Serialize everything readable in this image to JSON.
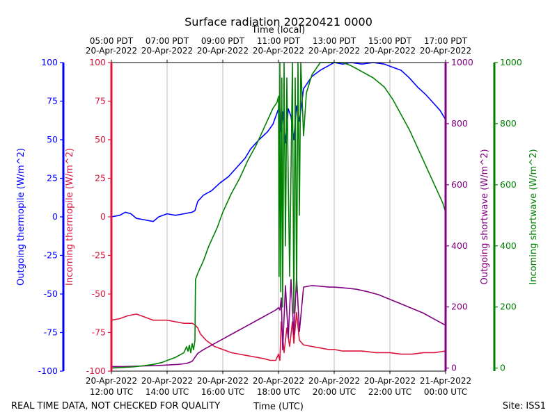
{
  "chart_data": {
    "type": "line",
    "title": "Surface radiation 20220421 0000",
    "top_axis_label": "Time (local)",
    "xlabel": "Time (UTC)",
    "footer_left": "REAL TIME DATA, NOT CHECKED FOR QUALITY",
    "footer_right": "Site: ISS1",
    "x_unit": "hours UTC on 20-Apr-2022",
    "xlim": [
      12,
      24
    ],
    "grid": "vertical",
    "x_ticks_utc": [
      {
        "x": 12,
        "line1": "20-Apr-2022",
        "line2": "12:00 UTC"
      },
      {
        "x": 14,
        "line1": "20-Apr-2022",
        "line2": "14:00 UTC"
      },
      {
        "x": 16,
        "line1": "20-Apr-2022",
        "line2": "16:00 UTC"
      },
      {
        "x": 18,
        "line1": "20-Apr-2022",
        "line2": "18:00 UTC"
      },
      {
        "x": 20,
        "line1": "20-Apr-2022",
        "line2": "20:00 UTC"
      },
      {
        "x": 22,
        "line1": "20-Apr-2022",
        "line2": "22:00 UTC"
      },
      {
        "x": 24,
        "line1": "21-Apr-2022",
        "line2": "00:00 UTC"
      }
    ],
    "x_ticks_local": [
      {
        "x": 12,
        "line1": "05:00 PDT",
        "line2": "20-Apr-2022"
      },
      {
        "x": 14,
        "line1": "07:00 PDT",
        "line2": "20-Apr-2022"
      },
      {
        "x": 16,
        "line1": "09:00 PDT",
        "line2": "20-Apr-2022"
      },
      {
        "x": 18,
        "line1": "11:00 PDT",
        "line2": "20-Apr-2022"
      },
      {
        "x": 20,
        "line1": "13:00 PDT",
        "line2": "20-Apr-2022"
      },
      {
        "x": 22,
        "line1": "15:00 PDT",
        "line2": "20-Apr-2022"
      },
      {
        "x": 24,
        "line1": "17:00 PDT",
        "line2": "20-Apr-2022"
      }
    ],
    "axes": [
      {
        "id": "outgoing_thermopile",
        "label": "Outgoing thermopile (W/m^2)",
        "color": "#0000ff",
        "ylim": [
          -100,
          100
        ],
        "ticks": [
          -100,
          -75,
          -50,
          -25,
          0,
          25,
          50,
          75,
          100
        ]
      },
      {
        "id": "incoming_thermopile",
        "label": "Incoming thermopile (W/m^2)",
        "color": "#dc143c",
        "ylim": [
          -100,
          100
        ],
        "ticks": [
          -100,
          -75,
          -50,
          -25,
          0,
          25,
          50,
          75,
          100
        ]
      },
      {
        "id": "outgoing_shortwave",
        "label": "Outgoing shortwave (W/m^2)",
        "color": "#800080",
        "ylim": [
          -10,
          1000
        ],
        "ticks": [
          0,
          200,
          400,
          600,
          800,
          1000
        ]
      },
      {
        "id": "incoming_shortwave",
        "label": "Incoming shortwave (W/m^2)",
        "color": "#008000",
        "ylim": [
          -10,
          1000
        ],
        "ticks": [
          0,
          200,
          400,
          600,
          800,
          1000
        ]
      }
    ],
    "series": [
      {
        "axis": "outgoing_thermopile",
        "color": "#0000ff",
        "x": [
          12.0,
          12.3,
          12.5,
          12.7,
          12.9,
          13.2,
          13.5,
          13.7,
          14.0,
          14.3,
          14.6,
          14.9,
          15.0,
          15.1,
          15.3,
          15.6,
          15.9,
          16.2,
          16.5,
          16.8,
          17.0,
          17.3,
          17.6,
          17.8,
          18.0,
          18.05,
          18.1,
          18.15,
          18.25,
          18.35,
          18.45,
          18.55,
          18.65,
          18.75,
          18.9,
          19.2,
          19.5,
          19.8,
          20.0,
          20.3,
          20.6,
          21.0,
          21.4,
          21.8,
          22.1,
          22.4,
          22.7,
          23.0,
          23.3,
          23.6,
          23.8,
          24.0
        ],
        "y": [
          0,
          1,
          3,
          2,
          -1,
          -2,
          -3,
          0,
          2,
          1,
          2,
          3,
          4,
          10,
          14,
          17,
          22,
          26,
          32,
          38,
          44,
          50,
          55,
          60,
          70,
          73,
          55,
          68,
          48,
          70,
          65,
          50,
          72,
          62,
          83,
          91,
          95,
          98,
          100,
          99,
          100,
          99,
          100,
          99,
          97,
          95,
          90,
          84,
          79,
          73,
          69,
          63
        ]
      },
      {
        "axis": "incoming_thermopile",
        "color": "#dc143c",
        "x": [
          12.0,
          12.3,
          12.6,
          12.9,
          13.2,
          13.5,
          13.8,
          14.0,
          14.3,
          14.6,
          14.9,
          15.0,
          15.1,
          15.2,
          15.4,
          15.7,
          16.0,
          16.3,
          16.6,
          16.9,
          17.2,
          17.5,
          17.7,
          17.9,
          18.0,
          18.05,
          18.1,
          18.2,
          18.3,
          18.4,
          18.5,
          18.55,
          18.65,
          18.75,
          18.9,
          19.2,
          19.5,
          19.8,
          20.0,
          20.3,
          20.6,
          21.0,
          21.5,
          22.0,
          22.4,
          22.8,
          23.2,
          23.6,
          24.0
        ],
        "y": [
          -67,
          -66,
          -64,
          -63,
          -65,
          -67,
          -67,
          -67,
          -68,
          -69,
          -69,
          -70,
          -72,
          -76,
          -80,
          -84,
          -86,
          -88,
          -89,
          -90,
          -91,
          -92,
          -93,
          -93,
          -89,
          -93,
          -68,
          -88,
          -72,
          -84,
          -68,
          -82,
          -62,
          -80,
          -83,
          -84,
          -85,
          -86,
          -86,
          -87,
          -87,
          -87,
          -88,
          -88,
          -89,
          -89,
          -88,
          -88,
          -87
        ]
      },
      {
        "axis": "outgoing_shortwave",
        "color": "#800080",
        "x": [
          12.0,
          12.4,
          12.8,
          13.2,
          13.6,
          14.0,
          14.4,
          14.7,
          14.9,
          15.0,
          15.1,
          15.3,
          15.6,
          16.0,
          16.4,
          16.8,
          17.2,
          17.6,
          17.9,
          18.0,
          18.05,
          18.1,
          18.15,
          18.25,
          18.35,
          18.45,
          18.55,
          18.65,
          18.75,
          18.9,
          19.2,
          19.5,
          19.8,
          20.0,
          20.4,
          20.8,
          21.2,
          21.6,
          22.0,
          22.4,
          22.8,
          23.2,
          23.6,
          24.0
        ],
        "y": [
          5,
          5,
          6,
          7,
          8,
          10,
          12,
          15,
          22,
          35,
          48,
          60,
          75,
          95,
          115,
          135,
          155,
          175,
          190,
          198,
          190,
          230,
          60,
          270,
          100,
          290,
          110,
          300,
          120,
          265,
          270,
          268,
          265,
          265,
          262,
          258,
          250,
          240,
          225,
          210,
          195,
          180,
          160,
          140
        ]
      },
      {
        "axis": "incoming_shortwave",
        "color": "#008000",
        "x": [
          12.0,
          12.4,
          12.8,
          13.2,
          13.5,
          13.8,
          14.0,
          14.3,
          14.6,
          14.7,
          14.75,
          14.8,
          14.85,
          14.9,
          14.95,
          15.0,
          15.02,
          15.1,
          15.3,
          15.5,
          15.8,
          16.0,
          16.3,
          16.6,
          16.9,
          17.2,
          17.5,
          17.8,
          17.95,
          18.0,
          18.02,
          18.05,
          18.08,
          18.12,
          18.15,
          18.2,
          18.25,
          18.3,
          18.4,
          18.5,
          18.55,
          18.6,
          18.65,
          18.7,
          18.75,
          18.8,
          18.9,
          19.0,
          19.2,
          19.5,
          19.8,
          20.0,
          20.3,
          20.6,
          21.0,
          21.4,
          21.8,
          22.1,
          22.4,
          22.7,
          23.0,
          23.3,
          23.6,
          23.9,
          24.0
        ],
        "y": [
          0,
          2,
          4,
          8,
          12,
          18,
          25,
          35,
          50,
          70,
          55,
          75,
          50,
          80,
          60,
          90,
          290,
          310,
          350,
          400,
          460,
          510,
          570,
          620,
          680,
          730,
          790,
          850,
          870,
          890,
          300,
          1000,
          250,
          950,
          200,
          1000,
          400,
          950,
          300,
          1000,
          180,
          950,
          250,
          1000,
          500,
          1000,
          760,
          900,
          960,
          1000,
          1000,
          1000,
          1000,
          990,
          970,
          950,
          920,
          880,
          830,
          780,
          720,
          660,
          600,
          540,
          510
        ]
      }
    ]
  }
}
